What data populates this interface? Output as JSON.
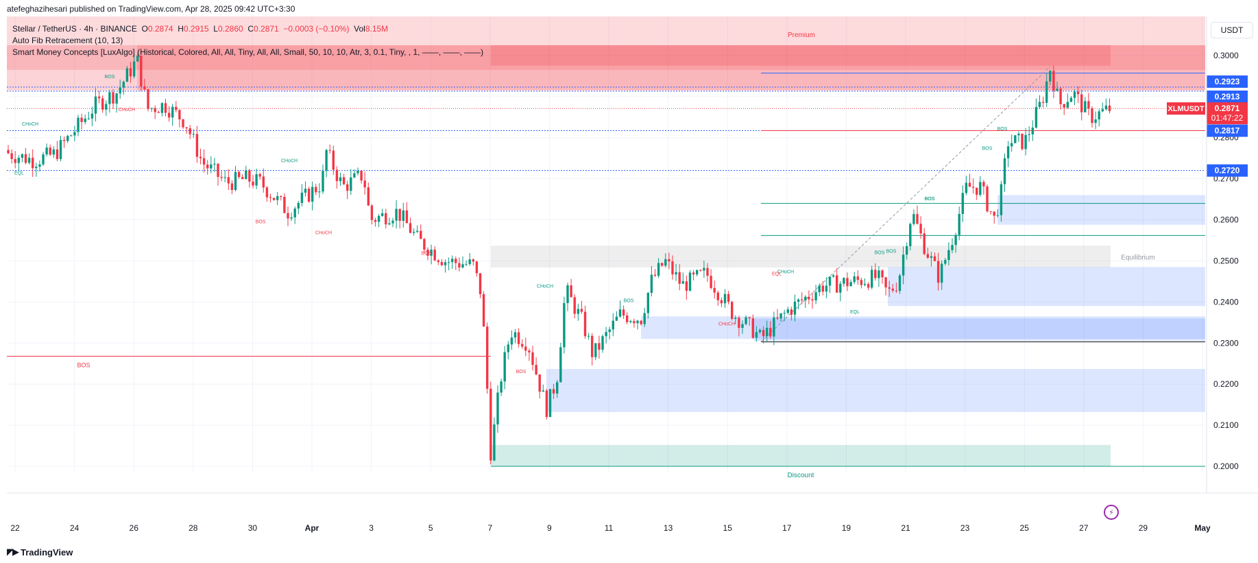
{
  "header": {
    "published": "atefeghazihesari published on TradingView.com, Apr 28, 2025 09:42 UTC+3:30"
  },
  "legend": {
    "symbol": "Stellar / TetherUS · 4h · BINANCE",
    "ohlc": {
      "o_label": "O",
      "o": "0.2874",
      "h_label": "H",
      "h": "0.2915",
      "l_label": "L",
      "l": "0.2860",
      "c_label": "C",
      "c": "0.2871",
      "change": "−0.0003 (−0.10%)",
      "vol_label": "Vol",
      "vol": "8.15M"
    },
    "indicators": [
      "Auto Fib Retracement (10, 13)",
      "Smart Money Concepts [LuxAlgo] (Historical, Colored, All, All, Tiny, All, All, Small, 50, 10, 10, Atr, 3, 0.1, Tiny, , 1, ——, ——, ——)"
    ]
  },
  "currency": "USDT",
  "footer": {
    "brand": "TradingView",
    "brand_icon": "tv-logo-icon"
  },
  "flash_icon": "lightning-icon",
  "colors": {
    "up": "#089981",
    "down": "#f23645",
    "blue_line": "#2962ff",
    "premium": "#f23645",
    "discount": "#089981",
    "bull_ob": "#2962ff"
  },
  "chart_data": {
    "type": "candlestick",
    "symbol": "XLMUSDT",
    "interval": "4h",
    "ylim": [
      0.1985,
      0.3095
    ],
    "y_ticks": [
      "0.3000",
      "0.2900",
      "0.2800",
      "0.2700",
      "0.2600",
      "0.2500",
      "0.2400",
      "0.2300",
      "0.2200",
      "0.2100",
      "0.2000"
    ],
    "x_ticks": [
      "22",
      "24",
      "26",
      "28",
      "30",
      "Apr",
      "3",
      "5",
      "7",
      "9",
      "11",
      "13",
      "15",
      "17",
      "19",
      "21",
      "23",
      "25",
      "27",
      "29",
      "May"
    ],
    "price_labels": [
      {
        "text": "0.2923",
        "price": 0.2923,
        "color": "#2962ff"
      },
      {
        "text": "0.2913",
        "price": 0.2913,
        "color": "#2962ff"
      },
      {
        "text": "XLMUSDT",
        "price": 0.2871,
        "color": "#f23645"
      },
      {
        "text": "0.2871",
        "price": 0.2871,
        "color": "#f23645"
      },
      {
        "text": "01:47:22",
        "price": 0.2871,
        "color": "#f23645"
      },
      {
        "text": "0.2817",
        "price": 0.2817,
        "color": "#2962ff"
      },
      {
        "text": "0.2720",
        "price": 0.272,
        "color": "#2962ff"
      }
    ],
    "zones": [
      {
        "label": "Premium",
        "from": 0.2965,
        "to": 0.3095,
        "color": "#f23645"
      },
      {
        "label": "Equilibrium",
        "from": 0.2484,
        "to": 0.2537,
        "color": "#9e9e9e"
      },
      {
        "label": "Discount",
        "from": 0.2,
        "to": 0.2052,
        "color": "#089981"
      }
    ],
    "structure_labels": [
      "BOS",
      "CHoCH",
      "CHoCH",
      "EQL",
      "CHoCH",
      "BOS",
      "CHoCH",
      "BOS",
      "BOS",
      "CHoCH",
      "BOS",
      "BOS",
      "BOS",
      "CHoCH",
      "EQL",
      "CHoCH",
      "EQL",
      "BOS",
      "BOS",
      "BOS",
      "BOS"
    ],
    "last_close": 0.2871
  }
}
